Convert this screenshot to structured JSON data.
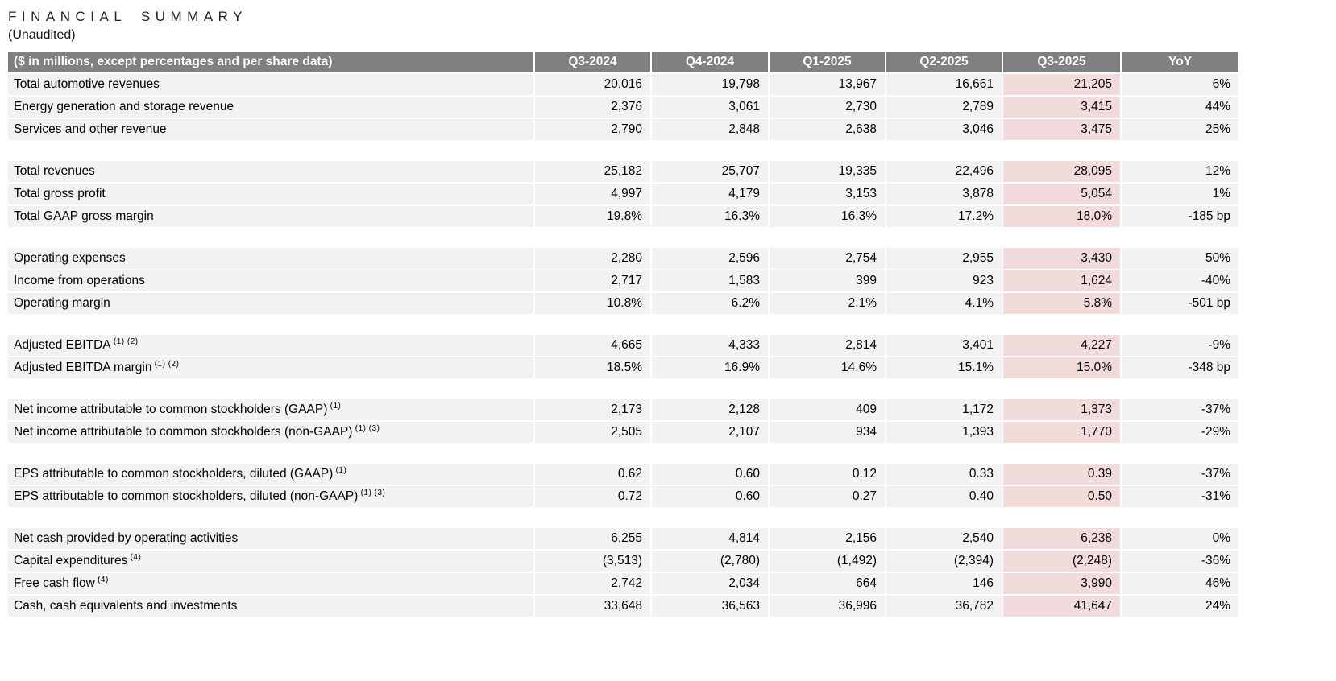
{
  "title": "FINANCIAL SUMMARY",
  "subtitle": "(Unaudited)",
  "colors": {
    "header_bg": "#808080",
    "header_text": "#ffffff",
    "row_bg": "#f2f2f2",
    "highlight_bg": "#f2dcdb"
  },
  "table": {
    "header_label": "($ in millions, except percentages and per share data)",
    "columns": [
      "Q3-2024",
      "Q4-2024",
      "Q1-2025",
      "Q2-2025",
      "Q3-2025",
      "YoY"
    ],
    "highlight_column": "Q3-2025",
    "groups": [
      {
        "rows": [
          {
            "label": "Total automotive revenues",
            "sup": "",
            "values": [
              "20,016",
              "19,798",
              "13,967",
              "16,661",
              "21,205",
              "6%"
            ]
          },
          {
            "label": "Energy generation and storage revenue",
            "sup": "",
            "values": [
              "2,376",
              "3,061",
              "2,730",
              "2,789",
              "3,415",
              "44%"
            ]
          },
          {
            "label": "Services and other revenue",
            "sup": "",
            "values": [
              "2,790",
              "2,848",
              "2,638",
              "3,046",
              "3,475",
              "25%"
            ]
          }
        ]
      },
      {
        "rows": [
          {
            "label": "Total revenues",
            "sup": "",
            "values": [
              "25,182",
              "25,707",
              "19,335",
              "22,496",
              "28,095",
              "12%"
            ]
          },
          {
            "label": "Total gross profit",
            "sup": "",
            "values": [
              "4,997",
              "4,179",
              "3,153",
              "3,878",
              "5,054",
              "1%"
            ]
          },
          {
            "label": "Total GAAP gross margin",
            "sup": "",
            "values": [
              "19.8%",
              "16.3%",
              "16.3%",
              "17.2%",
              "18.0%",
              "-185 bp"
            ]
          }
        ]
      },
      {
        "rows": [
          {
            "label": "Operating expenses",
            "sup": "",
            "values": [
              "2,280",
              "2,596",
              "2,754",
              "2,955",
              "3,430",
              "50%"
            ]
          },
          {
            "label": "Income from operations",
            "sup": "",
            "values": [
              "2,717",
              "1,583",
              "399",
              "923",
              "1,624",
              "-40%"
            ]
          },
          {
            "label": "Operating margin",
            "sup": "",
            "values": [
              "10.8%",
              "6.2%",
              "2.1%",
              "4.1%",
              "5.8%",
              "-501 bp"
            ]
          }
        ]
      },
      {
        "rows": [
          {
            "label": "Adjusted EBITDA",
            "sup": "(1) (2)",
            "values": [
              "4,665",
              "4,333",
              "2,814",
              "3,401",
              "4,227",
              "-9%"
            ]
          },
          {
            "label": "Adjusted EBITDA margin",
            "sup": "(1) (2)",
            "values": [
              "18.5%",
              "16.9%",
              "14.6%",
              "15.1%",
              "15.0%",
              "-348 bp"
            ]
          }
        ]
      },
      {
        "rows": [
          {
            "label": "Net income attributable to common stockholders (GAAP)",
            "sup": "(1)",
            "values": [
              "2,173",
              "2,128",
              "409",
              "1,172",
              "1,373",
              "-37%"
            ]
          },
          {
            "label": "Net income attributable to common stockholders (non-GAAP)",
            "sup": "(1) (3)",
            "values": [
              "2,505",
              "2,107",
              "934",
              "1,393",
              "1,770",
              "-29%"
            ]
          }
        ]
      },
      {
        "rows": [
          {
            "label": "EPS attributable to common stockholders, diluted (GAAP)",
            "sup": "(1)",
            "values": [
              "0.62",
              "0.60",
              "0.12",
              "0.33",
              "0.39",
              "-37%"
            ]
          },
          {
            "label": "EPS attributable to common stockholders, diluted (non-GAAP)",
            "sup": "(1) (3)",
            "values": [
              "0.72",
              "0.60",
              "0.27",
              "0.40",
              "0.50",
              "-31%"
            ]
          }
        ]
      },
      {
        "rows": [
          {
            "label": "Net cash provided by operating activities",
            "sup": "",
            "values": [
              "6,255",
              "4,814",
              "2,156",
              "2,540",
              "6,238",
              "0%"
            ]
          },
          {
            "label": "Capital expenditures",
            "sup": "(4)",
            "values": [
              "(3,513)",
              "(2,780)",
              "(1,492)",
              "(2,394)",
              "(2,248)",
              "-36%"
            ]
          },
          {
            "label": "Free cash flow",
            "sup": "(4)",
            "values": [
              "2,742",
              "2,034",
              "664",
              "146",
              "3,990",
              "46%"
            ]
          },
          {
            "label": "Cash, cash equivalents and investments",
            "sup": "",
            "values": [
              "33,648",
              "36,563",
              "36,996",
              "36,782",
              "41,647",
              "24%"
            ]
          }
        ]
      }
    ]
  }
}
